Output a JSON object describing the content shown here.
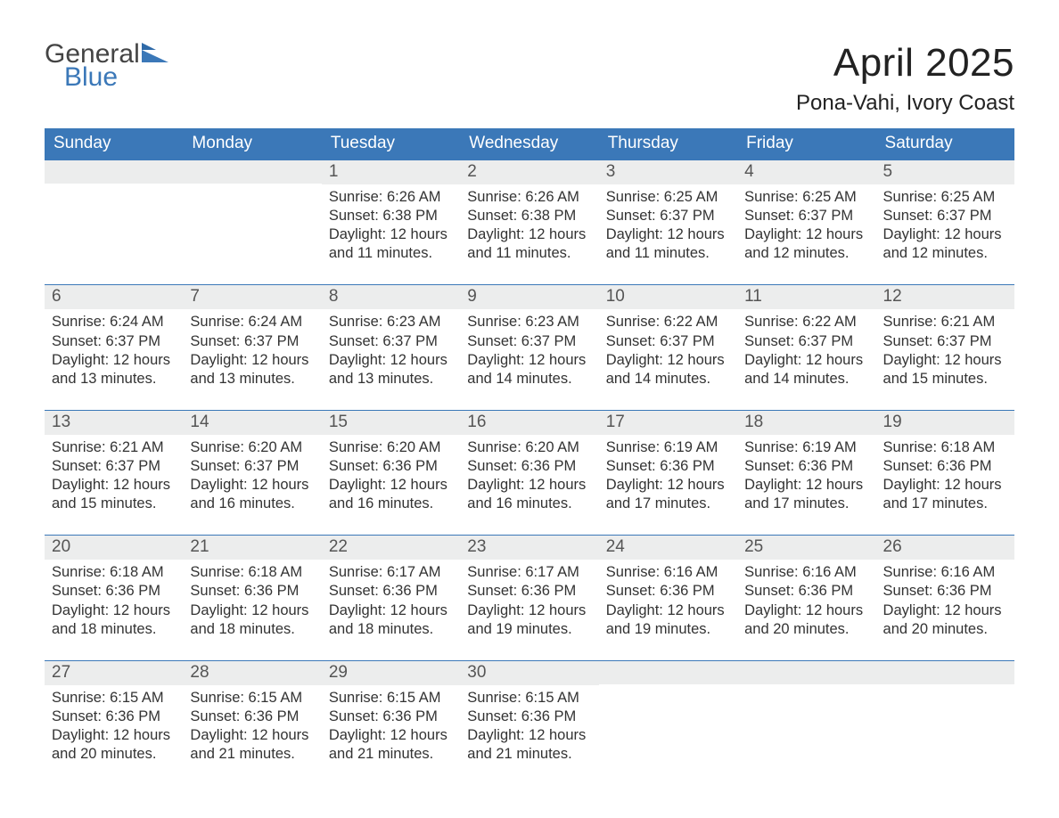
{
  "colors": {
    "header_blue": "#3b78b8",
    "daynum_bg": "#eceded",
    "row_divider": "#3b78b8",
    "logo_blue": "#3b78b8",
    "logo_grey": "#444444",
    "background": "#ffffff",
    "text": "#333333"
  },
  "typography": {
    "base_family": "Segoe UI, Arial, sans-serif",
    "title_fontsize_pt": 33,
    "location_fontsize_pt": 18,
    "dow_fontsize_pt": 14,
    "daynum_fontsize_pt": 14,
    "body_fontsize_pt": 12
  },
  "logo": {
    "line1": "General",
    "line2": "Blue"
  },
  "title": {
    "month": "April 2025",
    "location": "Pona-Vahi, Ivory Coast"
  },
  "dow": [
    "Sunday",
    "Monday",
    "Tuesday",
    "Wednesday",
    "Thursday",
    "Friday",
    "Saturday"
  ],
  "weeks": [
    [
      {
        "n": "",
        "sunrise": "",
        "sunset": "",
        "daylight": ""
      },
      {
        "n": "",
        "sunrise": "",
        "sunset": "",
        "daylight": ""
      },
      {
        "n": "1",
        "sunrise": "Sunrise: 6:26 AM",
        "sunset": "Sunset: 6:38 PM",
        "daylight": "Daylight: 12 hours and 11 minutes."
      },
      {
        "n": "2",
        "sunrise": "Sunrise: 6:26 AM",
        "sunset": "Sunset: 6:38 PM",
        "daylight": "Daylight: 12 hours and 11 minutes."
      },
      {
        "n": "3",
        "sunrise": "Sunrise: 6:25 AM",
        "sunset": "Sunset: 6:37 PM",
        "daylight": "Daylight: 12 hours and 11 minutes."
      },
      {
        "n": "4",
        "sunrise": "Sunrise: 6:25 AM",
        "sunset": "Sunset: 6:37 PM",
        "daylight": "Daylight: 12 hours and 12 minutes."
      },
      {
        "n": "5",
        "sunrise": "Sunrise: 6:25 AM",
        "sunset": "Sunset: 6:37 PM",
        "daylight": "Daylight: 12 hours and 12 minutes."
      }
    ],
    [
      {
        "n": "6",
        "sunrise": "Sunrise: 6:24 AM",
        "sunset": "Sunset: 6:37 PM",
        "daylight": "Daylight: 12 hours and 13 minutes."
      },
      {
        "n": "7",
        "sunrise": "Sunrise: 6:24 AM",
        "sunset": "Sunset: 6:37 PM",
        "daylight": "Daylight: 12 hours and 13 minutes."
      },
      {
        "n": "8",
        "sunrise": "Sunrise: 6:23 AM",
        "sunset": "Sunset: 6:37 PM",
        "daylight": "Daylight: 12 hours and 13 minutes."
      },
      {
        "n": "9",
        "sunrise": "Sunrise: 6:23 AM",
        "sunset": "Sunset: 6:37 PM",
        "daylight": "Daylight: 12 hours and 14 minutes."
      },
      {
        "n": "10",
        "sunrise": "Sunrise: 6:22 AM",
        "sunset": "Sunset: 6:37 PM",
        "daylight": "Daylight: 12 hours and 14 minutes."
      },
      {
        "n": "11",
        "sunrise": "Sunrise: 6:22 AM",
        "sunset": "Sunset: 6:37 PM",
        "daylight": "Daylight: 12 hours and 14 minutes."
      },
      {
        "n": "12",
        "sunrise": "Sunrise: 6:21 AM",
        "sunset": "Sunset: 6:37 PM",
        "daylight": "Daylight: 12 hours and 15 minutes."
      }
    ],
    [
      {
        "n": "13",
        "sunrise": "Sunrise: 6:21 AM",
        "sunset": "Sunset: 6:37 PM",
        "daylight": "Daylight: 12 hours and 15 minutes."
      },
      {
        "n": "14",
        "sunrise": "Sunrise: 6:20 AM",
        "sunset": "Sunset: 6:37 PM",
        "daylight": "Daylight: 12 hours and 16 minutes."
      },
      {
        "n": "15",
        "sunrise": "Sunrise: 6:20 AM",
        "sunset": "Sunset: 6:36 PM",
        "daylight": "Daylight: 12 hours and 16 minutes."
      },
      {
        "n": "16",
        "sunrise": "Sunrise: 6:20 AM",
        "sunset": "Sunset: 6:36 PM",
        "daylight": "Daylight: 12 hours and 16 minutes."
      },
      {
        "n": "17",
        "sunrise": "Sunrise: 6:19 AM",
        "sunset": "Sunset: 6:36 PM",
        "daylight": "Daylight: 12 hours and 17 minutes."
      },
      {
        "n": "18",
        "sunrise": "Sunrise: 6:19 AM",
        "sunset": "Sunset: 6:36 PM",
        "daylight": "Daylight: 12 hours and 17 minutes."
      },
      {
        "n": "19",
        "sunrise": "Sunrise: 6:18 AM",
        "sunset": "Sunset: 6:36 PM",
        "daylight": "Daylight: 12 hours and 17 minutes."
      }
    ],
    [
      {
        "n": "20",
        "sunrise": "Sunrise: 6:18 AM",
        "sunset": "Sunset: 6:36 PM",
        "daylight": "Daylight: 12 hours and 18 minutes."
      },
      {
        "n": "21",
        "sunrise": "Sunrise: 6:18 AM",
        "sunset": "Sunset: 6:36 PM",
        "daylight": "Daylight: 12 hours and 18 minutes."
      },
      {
        "n": "22",
        "sunrise": "Sunrise: 6:17 AM",
        "sunset": "Sunset: 6:36 PM",
        "daylight": "Daylight: 12 hours and 18 minutes."
      },
      {
        "n": "23",
        "sunrise": "Sunrise: 6:17 AM",
        "sunset": "Sunset: 6:36 PM",
        "daylight": "Daylight: 12 hours and 19 minutes."
      },
      {
        "n": "24",
        "sunrise": "Sunrise: 6:16 AM",
        "sunset": "Sunset: 6:36 PM",
        "daylight": "Daylight: 12 hours and 19 minutes."
      },
      {
        "n": "25",
        "sunrise": "Sunrise: 6:16 AM",
        "sunset": "Sunset: 6:36 PM",
        "daylight": "Daylight: 12 hours and 20 minutes."
      },
      {
        "n": "26",
        "sunrise": "Sunrise: 6:16 AM",
        "sunset": "Sunset: 6:36 PM",
        "daylight": "Daylight: 12 hours and 20 minutes."
      }
    ],
    [
      {
        "n": "27",
        "sunrise": "Sunrise: 6:15 AM",
        "sunset": "Sunset: 6:36 PM",
        "daylight": "Daylight: 12 hours and 20 minutes."
      },
      {
        "n": "28",
        "sunrise": "Sunrise: 6:15 AM",
        "sunset": "Sunset: 6:36 PM",
        "daylight": "Daylight: 12 hours and 21 minutes."
      },
      {
        "n": "29",
        "sunrise": "Sunrise: 6:15 AM",
        "sunset": "Sunset: 6:36 PM",
        "daylight": "Daylight: 12 hours and 21 minutes."
      },
      {
        "n": "30",
        "sunrise": "Sunrise: 6:15 AM",
        "sunset": "Sunset: 6:36 PM",
        "daylight": "Daylight: 12 hours and 21 minutes."
      },
      {
        "n": "",
        "sunrise": "",
        "sunset": "",
        "daylight": ""
      },
      {
        "n": "",
        "sunrise": "",
        "sunset": "",
        "daylight": ""
      },
      {
        "n": "",
        "sunrise": "",
        "sunset": "",
        "daylight": ""
      }
    ]
  ]
}
